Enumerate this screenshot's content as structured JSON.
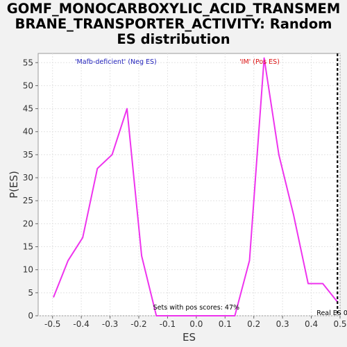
{
  "chart_data": {
    "type": "line",
    "title": "GOMF_MONOCARBOXYLIC_ACID_TRANSMEMBRANE_TRANSPORTER_ACTIVITY: Random ES distribution",
    "title_lines": [
      "GOMF_MONOCARBOXYLIC_ACID_TRANSMEM",
      "BRANE_TRANSPORTER_ACTIVITY: Random",
      "ES distribution"
    ],
    "xlabel": "ES",
    "ylabel": "P(ES)",
    "xlim": [
      -0.55,
      0.5
    ],
    "ylim": [
      0,
      57
    ],
    "xticks": [
      -0.5,
      -0.4,
      -0.3,
      -0.2,
      -0.1,
      0.0,
      0.1,
      0.2,
      0.3,
      0.4,
      0.5
    ],
    "xtick_labels": [
      "-0.5",
      "-0.4",
      "-0.3",
      "-0.2",
      "-0.1",
      "0.0",
      "0.1",
      "0.2",
      "0.3",
      "0.4",
      "0.5"
    ],
    "yticks": [
      0,
      5,
      10,
      15,
      20,
      25,
      30,
      35,
      40,
      45,
      50,
      55
    ],
    "ytick_labels": [
      "0",
      "5",
      "10",
      "15",
      "20",
      "25",
      "30",
      "35",
      "40",
      "45",
      "50",
      "55"
    ],
    "grid": true,
    "series": [
      {
        "color": "#ee33ee",
        "x": [
          -0.497,
          -0.446,
          -0.395,
          -0.344,
          -0.293,
          -0.241,
          -0.19,
          -0.139,
          -0.088,
          -0.037,
          0.014,
          0.065,
          0.116,
          0.134,
          0.185,
          0.236,
          0.287,
          0.338,
          0.389,
          0.44,
          0.491
        ],
        "y": [
          4,
          12,
          17,
          32,
          35,
          45,
          13,
          0,
          0,
          0,
          0,
          0,
          0,
          0,
          12,
          56,
          35,
          22,
          7,
          7,
          3
        ]
      }
    ],
    "legend": {
      "placement": "top",
      "neg_label": "'Mafb-deficient' (Neg ES)",
      "neg_color": "#2222bb",
      "pos_label": "'IM' (Pos ES)",
      "pos_color": "#dd1111"
    },
    "real_es": 0.491,
    "real_es_label": "Real ES 0.5",
    "pos_scores_text": "Sets with pos scores: 47%"
  }
}
